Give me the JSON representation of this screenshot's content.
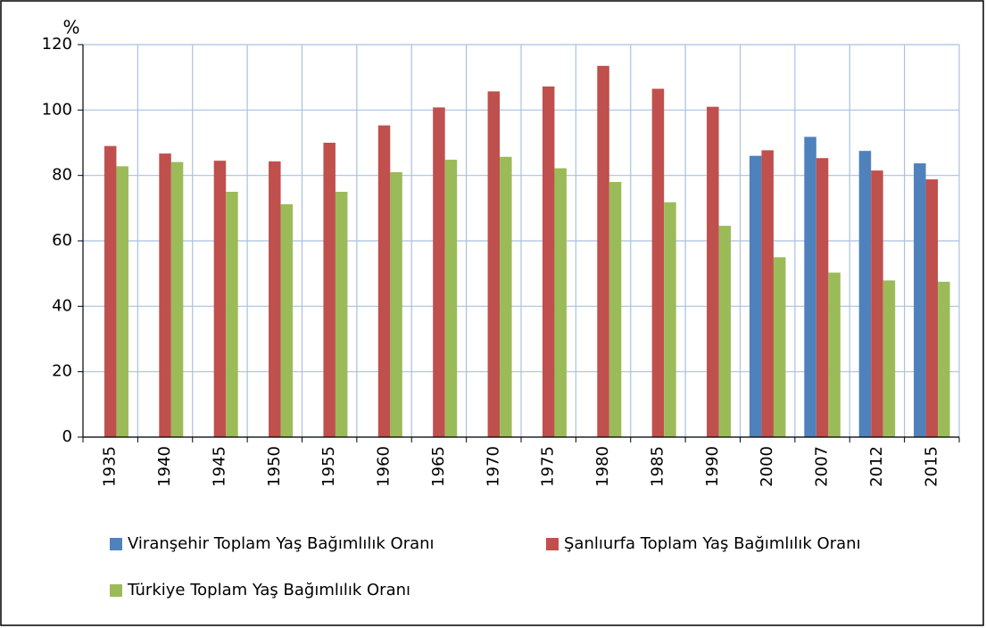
{
  "chart_data": {
    "type": "bar",
    "y_label": "%",
    "categories": [
      "1935",
      "1940",
      "1945",
      "1950",
      "1955",
      "1960",
      "1965",
      "1970",
      "1975",
      "1980",
      "1985",
      "1990",
      "2000",
      "2007",
      "2012",
      "2015"
    ],
    "series": [
      {
        "name": "Viranşehir Toplam Yaş Bağımlılık Oranı",
        "color": "#4f81bd",
        "values": [
          null,
          null,
          null,
          null,
          null,
          null,
          null,
          null,
          null,
          null,
          null,
          null,
          86,
          91.8,
          87.5,
          83.7
        ]
      },
      {
        "name": "Şanlıurfa Toplam Yaş Bağımlılık Oranı",
        "color": "#c0504d",
        "values": [
          89,
          86.7,
          84.5,
          84.3,
          90,
          95.3,
          100.8,
          105.7,
          107.2,
          113.5,
          106.5,
          101,
          87.7,
          85.3,
          81.5,
          78.8
        ]
      },
      {
        "name": "Türkiye Toplam Yaş Bağımlılık Oranı",
        "color": "#9bbb59",
        "values": [
          82.8,
          84.1,
          75,
          71.2,
          75,
          81,
          84.8,
          85.7,
          82.2,
          78,
          71.8,
          64.6,
          55,
          50.3,
          47.9,
          47.5
        ]
      }
    ],
    "ylim": [
      0,
      120
    ],
    "yticks": [
      0,
      20,
      40,
      60,
      80,
      100,
      120
    ],
    "grid": true
  }
}
